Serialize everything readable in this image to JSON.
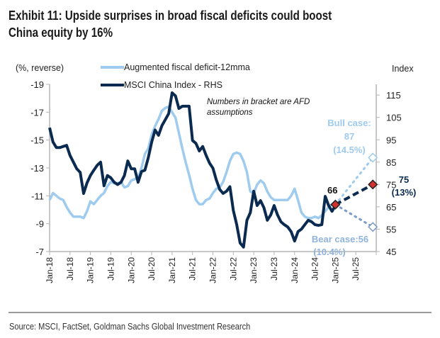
{
  "header": {
    "title_line1": "Exhibit 11: Upside surprises in broad fiscal deficits could boost",
    "title_line2": "China equity by 16%"
  },
  "footer": {
    "source": "Source: MSCI, FactSet, Goldman Sachs Global Investment Research"
  },
  "chart_data": {
    "type": "line",
    "left_axis": {
      "label": "(%, reverse)",
      "reversed": true,
      "range": [
        -19,
        -7
      ],
      "ticks": [
        -19,
        -17,
        -15,
        -13,
        -11,
        -9,
        -7
      ]
    },
    "right_axis": {
      "label": "Index",
      "range": [
        45,
        120
      ],
      "ticks": [
        115,
        105,
        95,
        85,
        75,
        65,
        55,
        45
      ]
    },
    "x_ticks": [
      "Jan-18",
      "Jul-18",
      "Jan-19",
      "Jul-19",
      "Jan-20",
      "Jul-20",
      "Jan-21",
      "Jul-21",
      "Jan-22",
      "Jul-22",
      "Jan-23",
      "Jul-23",
      "Jan-24",
      "Jul-24",
      "Jan-25",
      "Jul-25"
    ],
    "x_start": "Jan-18",
    "x_frequency": "monthly",
    "grid": false,
    "legend_placement": "top-left",
    "series": [
      {
        "name": "Augmented fiscal deficit-12mma",
        "axis": "left",
        "color": "#9ecbee",
        "values": [
          -10.7,
          -11.2,
          -11.0,
          -10.8,
          -10.7,
          -10.2,
          -9.8,
          -9.5,
          -9.5,
          -9.5,
          -9.4,
          -9.9,
          -10.6,
          -10.4,
          -10.7,
          -11.0,
          -11.2,
          -11.7,
          -12.0,
          -11.9,
          -11.9,
          -12.0,
          -11.6,
          -11.7,
          -12.1,
          -12.2,
          -12.3,
          -13.0,
          -14.0,
          -14.4,
          -15.4,
          -16.0,
          -16.5,
          -17.1,
          -17.3,
          -17.4,
          -17.0,
          -16.6,
          -15.5,
          -14.4,
          -13.4,
          -12.5,
          -11.5,
          -10.7,
          -10.4,
          -10.4,
          -10.7,
          -10.8,
          -11.2,
          -11.5,
          -11.6,
          -12.0,
          -12.7,
          -13.5,
          -14.0,
          -14.1,
          -14.0,
          -13.5,
          -12.7,
          -11.3,
          -11.2,
          -11.8,
          -12.1,
          -11.9,
          -11.3,
          -10.9,
          -10.7,
          -10.7,
          -10.7,
          -10.7,
          -10.7,
          -11.0,
          -11.5,
          -10.7,
          -9.8,
          -9.5,
          -9.4,
          -9.4,
          -9.5,
          -9.4,
          -9.6,
          -9.9,
          -10.2,
          -10.4,
          -10.6
        ]
      },
      {
        "name": "MSCI China Index - RHS",
        "axis": "right",
        "color": "#0b2a4f",
        "values": [
          100.4,
          94,
          91.5,
          91.5,
          92,
          92.5,
          88,
          85,
          82,
          80.4,
          71,
          75.7,
          79,
          81.4,
          83.6,
          85,
          74.4,
          79,
          78,
          76,
          75,
          76,
          79,
          85.5,
          82,
          82,
          76,
          80.8,
          81.4,
          87,
          94,
          99.4,
          97,
          101.3,
          104,
          106.7,
          116,
          114.6,
          109,
          110,
          110,
          110,
          94.7,
          93.4,
          90,
          92,
          88,
          84.6,
          82.3,
          77,
          72.8,
          71,
          72,
          74,
          63.4,
          57,
          48.8,
          47,
          59,
          62.4,
          72,
          65.6,
          67.8,
          64.6,
          59,
          61.4,
          65.6,
          61.4,
          58.3,
          57,
          56,
          53.9,
          49.7,
          53.9,
          55,
          57,
          59,
          58.3,
          57,
          56.7,
          57,
          69.7,
          65.6,
          63,
          65.6
        ]
      }
    ],
    "projections": {
      "start": {
        "date": "Jan-25",
        "value": 66,
        "label": "66"
      },
      "end_date": "Dec-25",
      "base": {
        "value": 75,
        "label": "75",
        "assumption": "(13%)"
      },
      "bull": {
        "value": 87,
        "label_line1": "Bull case:",
        "label_line2": "87",
        "assumption": "(14.5%)"
      },
      "bear": {
        "value": 56,
        "label": "Bear case:56",
        "assumption": "(10.4%)"
      }
    },
    "annotation": {
      "line1": "Numbers in bracket are AFD",
      "line2": "assumptions"
    },
    "colors": {
      "marker": "#d0312d",
      "bear_text": "#8fb3dc",
      "bull_text": "#9ecbee"
    }
  }
}
